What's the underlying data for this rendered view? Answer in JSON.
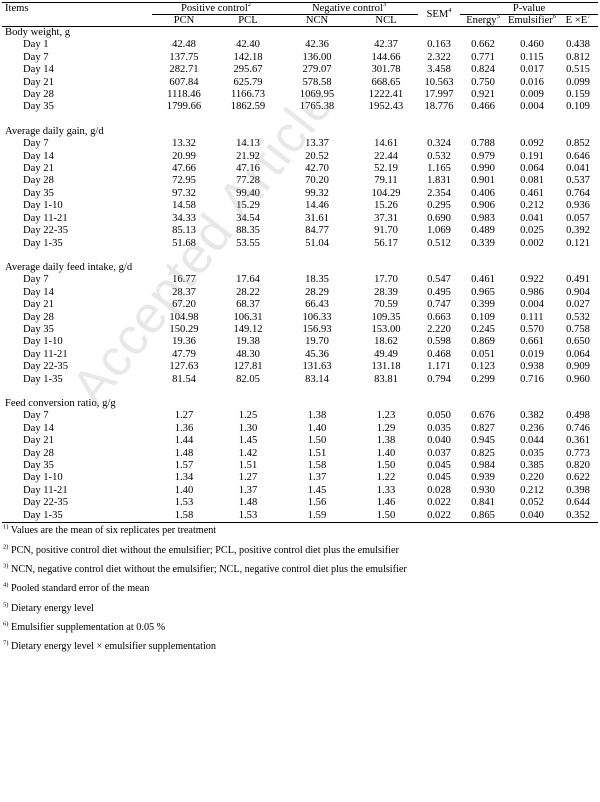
{
  "header": {
    "items": "Items",
    "positive_control": "Positive control",
    "positive_sup": "2",
    "negative_control": "Negative control",
    "negative_sup": "3",
    "sem": "SEM",
    "sem_sup": "4",
    "pvalue": "P-value",
    "pcn": "PCN",
    "pcl": "PCL",
    "ncn": "NCN",
    "ncl": "NCL",
    "energy": "Energy",
    "energy_sup": "5",
    "emulsifier": "Emulsifier",
    "emulsifier_sup": "6",
    "interaction": "E ×E",
    "interaction_sup": "7"
  },
  "sections": [
    {
      "title": "Body weight, g",
      "rows": [
        {
          "label": "Day 1",
          "v": [
            "42.48",
            "42.40",
            "42.36",
            "42.37",
            "0.163",
            "0.662",
            "0.460",
            "0.438"
          ]
        },
        {
          "label": "Day 7",
          "v": [
            "137.75",
            "142.18",
            "136.00",
            "144.66",
            "2.322",
            "0.771",
            "0.115",
            "0.812"
          ]
        },
        {
          "label": "Day 14",
          "v": [
            "282.71",
            "295.67",
            "279.07",
            "301.78",
            "3.458",
            "0.824",
            "0.017",
            "0.515"
          ]
        },
        {
          "label": "Day 21",
          "v": [
            "607.84",
            "625.79",
            "578.58",
            "668.65",
            "10.563",
            "0.750",
            "0.016",
            "0.099"
          ]
        },
        {
          "label": "Day 28",
          "v": [
            "1118.46",
            "1166.73",
            "1069.95",
            "1222.41",
            "17.997",
            "0.921",
            "0.009",
            "0.159"
          ]
        },
        {
          "label": "Day 35",
          "v": [
            "1799.66",
            "1862.59",
            "1765.38",
            "1952.43",
            "18.776",
            "0.466",
            "0.004",
            "0.109"
          ]
        }
      ]
    },
    {
      "title": "Average daily gain, g/d",
      "rows": [
        {
          "label": "Day 7",
          "v": [
            "13.32",
            "14.13",
            "13.37",
            "14.61",
            "0.324",
            "0.788",
            "0.092",
            "0.852"
          ]
        },
        {
          "label": "Day 14",
          "v": [
            "20.99",
            "21.92",
            "20.52",
            "22.44",
            "0.532",
            "0.979",
            "0.191",
            "0.646"
          ]
        },
        {
          "label": "Day 21",
          "v": [
            "47.66",
            "47.16",
            "42.70",
            "52.19",
            "1.165",
            "0.990",
            "0.064",
            "0.041"
          ]
        },
        {
          "label": "Day 28",
          "v": [
            "72.95",
            "77.28",
            "70.20",
            "79.11",
            "1.831",
            "0.901",
            "0.081",
            "0.537"
          ]
        },
        {
          "label": "Day 35",
          "v": [
            "97.32",
            "99.40",
            "99.32",
            "104.29",
            "2.354",
            "0.406",
            "0.461",
            "0.764"
          ]
        },
        {
          "label": "Day 1-10",
          "v": [
            "14.58",
            "15.29",
            "14.46",
            "15.26",
            "0.295",
            "0.906",
            "0.212",
            "0.936"
          ]
        },
        {
          "label": "Day 11-21",
          "v": [
            "34.33",
            "34.54",
            "31.61",
            "37.31",
            "0.690",
            "0.983",
            "0.041",
            "0.057"
          ]
        },
        {
          "label": "Day 22-35",
          "v": [
            "85.13",
            "88.35",
            "84.77",
            "91.70",
            "1.069",
            "0.489",
            "0.025",
            "0.392"
          ]
        },
        {
          "label": "Day 1-35",
          "v": [
            "51.68",
            "53.55",
            "51.04",
            "56.17",
            "0.512",
            "0.339",
            "0.002",
            "0.121"
          ]
        }
      ]
    },
    {
      "title": "Average daily feed intake, g/d",
      "rows": [
        {
          "label": "Day 7",
          "v": [
            "16.77",
            "17.64",
            "18.35",
            "17.70",
            "0.547",
            "0.461",
            "0.922",
            "0.491"
          ]
        },
        {
          "label": "Day 14",
          "v": [
            "28.37",
            "28.22",
            "28.29",
            "28.39",
            "0.495",
            "0.965",
            "0.986",
            "0.904"
          ]
        },
        {
          "label": "Day 21",
          "v": [
            "67.20",
            "68.37",
            "66.43",
            "70.59",
            "0.747",
            "0.399",
            "0.004",
            "0.027"
          ]
        },
        {
          "label": "Day 28",
          "v": [
            "104.98",
            "106.31",
            "106.33",
            "109.35",
            "0.663",
            "0.109",
            "0.111",
            "0.532"
          ]
        },
        {
          "label": "Day 35",
          "v": [
            "150.29",
            "149.12",
            "156.93",
            "153.00",
            "2.220",
            "0.245",
            "0.570",
            "0.758"
          ]
        },
        {
          "label": "Day 1-10",
          "v": [
            "19.36",
            "19.38",
            "19.70",
            "18.62",
            "0.598",
            "0.869",
            "0.661",
            "0.650"
          ]
        },
        {
          "label": "Day 11-21",
          "v": [
            "47.79",
            "48.30",
            "45.36",
            "49.49",
            "0.468",
            "0.051",
            "0.019",
            "0.064"
          ]
        },
        {
          "label": "Day 22-35",
          "v": [
            "127.63",
            "127.81",
            "131.63",
            "131.18",
            "1.171",
            "0.123",
            "0.938",
            "0.909"
          ]
        },
        {
          "label": "Day 1-35",
          "v": [
            "81.54",
            "82.05",
            "83.14",
            "83.81",
            "0.794",
            "0.299",
            "0.716",
            "0.960"
          ]
        }
      ]
    },
    {
      "title": "Feed conversion ratio, g/g",
      "rows": [
        {
          "label": "Day 7",
          "v": [
            "1.27",
            "1.25",
            "1.38",
            "1.23",
            "0.050",
            "0.676",
            "0.382",
            "0.498"
          ]
        },
        {
          "label": "Day 14",
          "v": [
            "1.36",
            "1.30",
            "1.40",
            "1.29",
            "0.035",
            "0.827",
            "0.236",
            "0.746"
          ]
        },
        {
          "label": "Day 21",
          "v": [
            "1.44",
            "1.45",
            "1.50",
            "1.38",
            "0.040",
            "0.945",
            "0.044",
            "0.361"
          ]
        },
        {
          "label": "Day 28",
          "v": [
            "1.48",
            "1.42",
            "1.51",
            "1.40",
            "0.037",
            "0.825",
            "0.035",
            "0.773"
          ]
        },
        {
          "label": "Day 35",
          "v": [
            "1.57",
            "1.51",
            "1.58",
            "1.50",
            "0.045",
            "0.984",
            "0.385",
            "0.820"
          ]
        },
        {
          "label": "Day 1-10",
          "v": [
            "1.34",
            "1.27",
            "1.37",
            "1.22",
            "0.045",
            "0.939",
            "0.220",
            "0.622"
          ]
        },
        {
          "label": "Day 11-21",
          "v": [
            "1.40",
            "1.37",
            "1.45",
            "1.33",
            "0.028",
            "0.930",
            "0.212",
            "0.398"
          ]
        },
        {
          "label": "Day 22-35",
          "v": [
            "1.53",
            "1.48",
            "1.56",
            "1.46",
            "0.022",
            "0.841",
            "0.052",
            "0.644"
          ]
        },
        {
          "label": "Day 1-35",
          "v": [
            "1.58",
            "1.53",
            "1.59",
            "1.50",
            "0.022",
            "0.865",
            "0.040",
            "0.352"
          ]
        }
      ]
    }
  ],
  "footnotes": [
    {
      "sup": "1)",
      "text": " Values are the mean of six replicates per treatment"
    },
    {
      "sup": "2)",
      "text": " PCN, positive control diet without the emulsifier; PCL, positive control diet plus the emulsifier"
    },
    {
      "sup": "3)",
      "text": " NCN, negative control diet without the emulsifier; NCL, negative control diet plus the emulsifier"
    },
    {
      "sup": "4)",
      "text": " Pooled standard error of the mean"
    },
    {
      "sup": "5)",
      "text": " Dietary energy level"
    },
    {
      "sup": "6)",
      "text": " Emulsifier supplementation at 0.05 %"
    },
    {
      "sup": "7)",
      "text": " Dietary energy level × emulsifier supplementation"
    }
  ],
  "watermark": "Accepted Article"
}
